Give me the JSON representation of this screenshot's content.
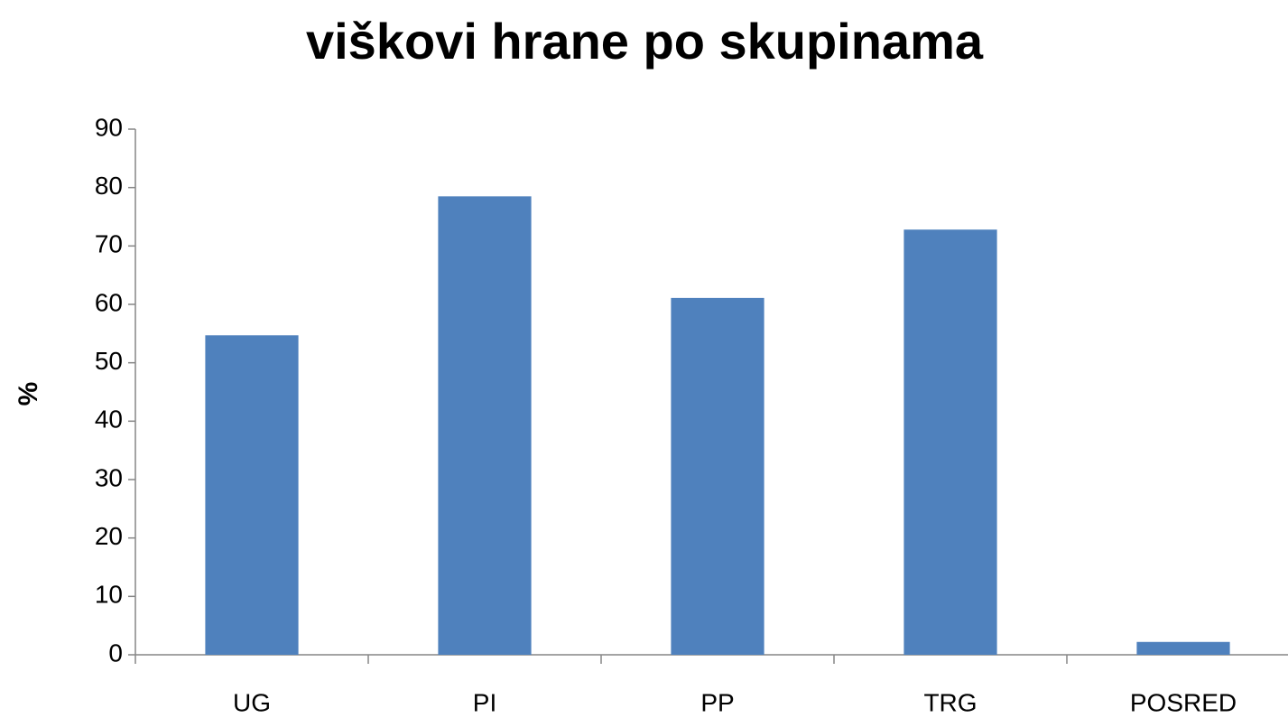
{
  "chart_data": {
    "type": "bar",
    "title": "viškovi hrane po skupinama",
    "y_label": "%",
    "categories": [
      "UG",
      "PI",
      "PP",
      "TRG",
      "POSRED"
    ],
    "values": [
      54.7,
      78.5,
      61.1,
      72.8,
      2.2
    ],
    "color": "#4f81bd",
    "ylim": [
      0,
      90
    ],
    "yticks": [
      0,
      10,
      20,
      30,
      40,
      50,
      60,
      70,
      80,
      90
    ],
    "grid": false
  }
}
